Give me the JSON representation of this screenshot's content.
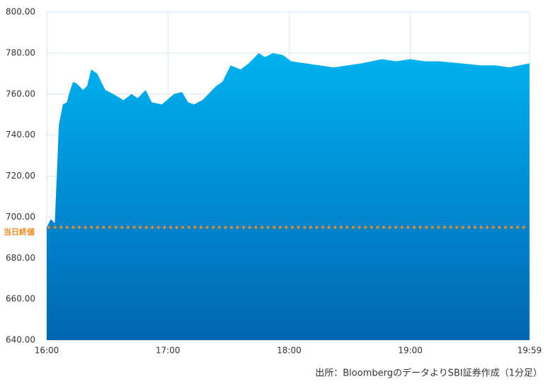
{
  "chart_data": {
    "type": "area",
    "x": [
      "16:00",
      "16:02",
      "16:04",
      "16:06",
      "16:08",
      "16:10",
      "16:11",
      "16:13",
      "16:15",
      "16:18",
      "16:20",
      "16:22",
      "16:25",
      "16:29",
      "16:33",
      "16:38",
      "16:42",
      "16:45",
      "16:49",
      "16:52",
      "16:57",
      "17:03",
      "17:07",
      "17:10",
      "17:13",
      "17:17",
      "17:20",
      "17:24",
      "17:27",
      "17:31",
      "17:36",
      "17:40",
      "17:45",
      "17:48",
      "17:52",
      "17:57",
      "18:01",
      "18:08",
      "18:15",
      "18:22",
      "18:29",
      "18:36",
      "18:46",
      "18:53",
      "19:00",
      "19:07",
      "19:14",
      "19:25",
      "19:35",
      "19:42",
      "19:49",
      "19:54",
      "19:59"
    ],
    "values": [
      695,
      699,
      697,
      745,
      755,
      756,
      760,
      766,
      765,
      762,
      764,
      772,
      770,
      762,
      760,
      757,
      760,
      758,
      762,
      756,
      755,
      760,
      761,
      756,
      755,
      757,
      760,
      764,
      766,
      774,
      772,
      775,
      780,
      778,
      780,
      779,
      776,
      775,
      774,
      773,
      774,
      775,
      777,
      776,
      777,
      776,
      776,
      775,
      774,
      774,
      773,
      774,
      775
    ],
    "colors": [
      "#00b2ef",
      "#0065b2"
    ],
    "ylim": [
      640,
      800
    ],
    "yticks": [
      {
        "value": 640,
        "label": "640.00"
      },
      {
        "value": 660,
        "label": "660.00"
      },
      {
        "value": 680,
        "label": "680.00"
      },
      {
        "value": 700,
        "label": "700.00"
      },
      {
        "value": 720,
        "label": "720.00"
      },
      {
        "value": 740,
        "label": "740.00"
      },
      {
        "value": 760,
        "label": "760.00"
      },
      {
        "value": 780,
        "label": "780.00"
      },
      {
        "value": 800,
        "label": "800.00"
      }
    ],
    "xticks": [
      "16:00",
      "17:00",
      "18:00",
      "19:00",
      "19:59"
    ],
    "grid": true,
    "reference_line": {
      "value": 695,
      "label": "当日終値",
      "color": "#ee8a24"
    },
    "source": "出所：BloombergのデータよりSBI証券作成（1分足）"
  }
}
